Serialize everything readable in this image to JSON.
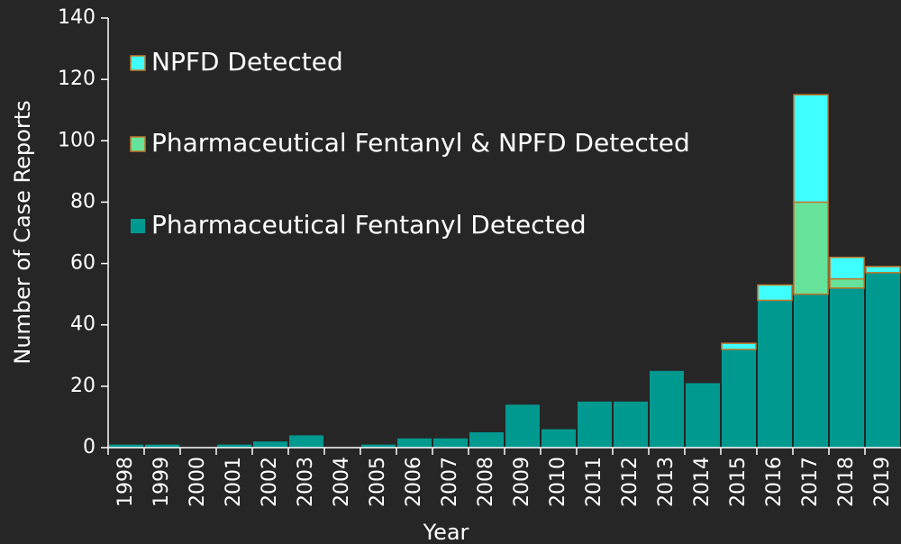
{
  "chart_data": {
    "type": "stacked_bar",
    "categories": [
      "1998",
      "1999",
      "2000",
      "2001",
      "2002",
      "2003",
      "2004",
      "2005",
      "2006",
      "2007",
      "2008",
      "2009",
      "2010",
      "2011",
      "2012",
      "2013",
      "2014",
      "2015",
      "2016",
      "2017",
      "2018",
      "2019"
    ],
    "series": [
      {
        "name": "Pharmaceutical Fentanyl Detected",
        "color": "#009990",
        "values": [
          1,
          1,
          0,
          1,
          2,
          4,
          0,
          1,
          3,
          3,
          5,
          14,
          6,
          15,
          15,
          25,
          21,
          32,
          48,
          50,
          52,
          57
        ]
      },
      {
        "name": "Pharmaceutical Fentanyl & NPFD Detected",
        "color": "#66e39a",
        "values": [
          0,
          0,
          0,
          0,
          0,
          0,
          0,
          0,
          0,
          0,
          0,
          0,
          0,
          0,
          0,
          0,
          0,
          0,
          0,
          30,
          3,
          0
        ]
      },
      {
        "name": "NPFD Detected",
        "color": "#40ffff",
        "values": [
          0,
          0,
          0,
          0,
          0,
          0,
          0,
          0,
          0,
          0,
          0,
          0,
          0,
          0,
          0,
          0,
          0,
          2,
          5,
          35,
          7,
          2
        ]
      }
    ],
    "x_label": "Year",
    "y_label": "Number of Case Reports",
    "ylim": [
      0,
      140
    ],
    "yticks": [
      0,
      20,
      40,
      60,
      80,
      100,
      120,
      140
    ]
  }
}
